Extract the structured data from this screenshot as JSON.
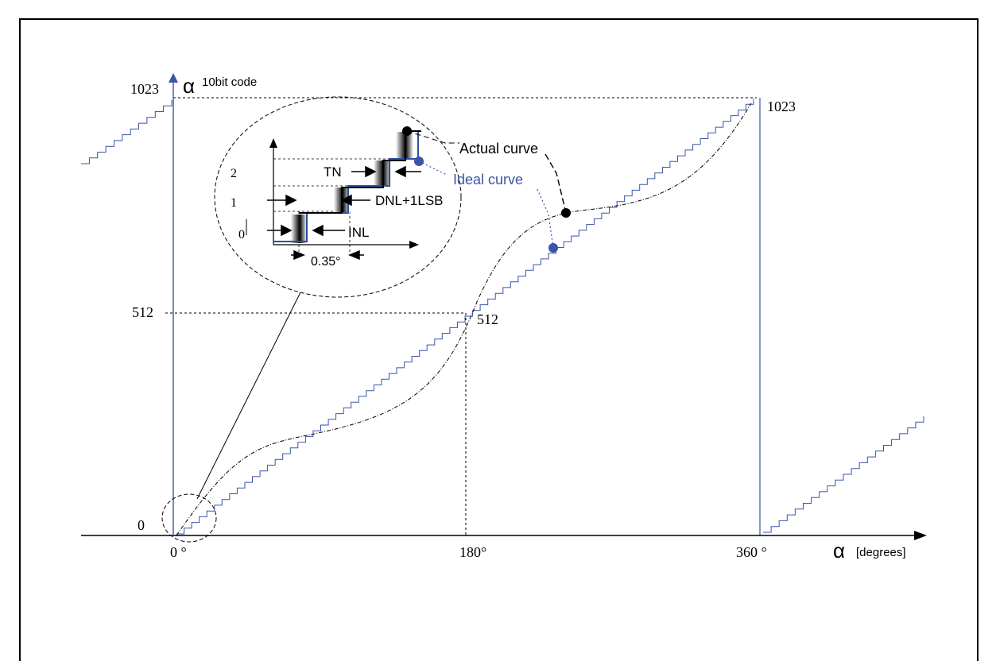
{
  "diagram": {
    "y_axis": {
      "symbol": "α",
      "label": "10bit code",
      "ticks": [
        "1023",
        "512",
        "0"
      ]
    },
    "x_axis": {
      "symbol": "α",
      "label": "[degrees]",
      "ticks": [
        "0 °",
        "180°",
        "360 °"
      ]
    },
    "point_labels": {
      "max": "1023",
      "mid": "512"
    },
    "legend": {
      "actual": "Actual curve",
      "ideal": "Ideal curve"
    },
    "inset": {
      "y_ticks": [
        "2",
        "1",
        "0"
      ],
      "annotations": {
        "tn": "TN",
        "dnl": "DNL+1LSB",
        "inl": "INL",
        "step": "0.35°"
      }
    },
    "colors": {
      "ideal": "#2e4fa3",
      "actual": "#000000",
      "axis": "#000000",
      "y_axis": "#3a55a8"
    }
  }
}
